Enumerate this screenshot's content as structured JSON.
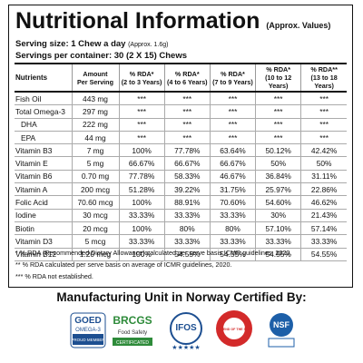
{
  "header": {
    "title": "Nutritional Information",
    "title_note": "(Approx. Values)",
    "serving_size": "Serving size: 1 Chew a day",
    "serving_note": "(Approx. 1.6g)",
    "servings_per_container": "Servings per container: 30 (2 X 15) Chews"
  },
  "table": {
    "columns": [
      [
        "Nutrients"
      ],
      [
        "Amount",
        "Per Serving"
      ],
      [
        "% RDA*",
        "(2 to 3 Years)"
      ],
      [
        "% RDA*",
        "(4 to 6 Years)"
      ],
      [
        "% RDA*",
        "(7 to 9 Years)"
      ],
      [
        "% RDA*",
        "(10 to 12 Years)"
      ],
      [
        "% RDA**",
        "(13 to 18 Years)"
      ]
    ],
    "rows": [
      [
        "Fish Oil",
        "443 mg",
        "***",
        "***",
        "***",
        "***",
        "***"
      ],
      [
        "Total Omega-3",
        "297 mg",
        "***",
        "***",
        "***",
        "***",
        "***"
      ],
      [
        "DHA",
        "222 mg",
        "***",
        "***",
        "***",
        "***",
        "***"
      ],
      [
        "EPA",
        "44 mg",
        "***",
        "***",
        "***",
        "***",
        "***"
      ],
      [
        "Vitamin B3",
        "7 mg",
        "100%",
        "77.78%",
        "63.64%",
        "50.12%",
        "42.42%"
      ],
      [
        "Vitamin E",
        "5 mg",
        "66.67%",
        "66.67%",
        "66.67%",
        "50%",
        "50%"
      ],
      [
        "Vitamin B6",
        "0.70 mg",
        "77.78%",
        "58.33%",
        "46.67%",
        "36.84%",
        "31.11%"
      ],
      [
        "Vitamin A",
        "200 mcg",
        "51.28%",
        "39.22%",
        "31.75%",
        "25.97%",
        "22.86%"
      ],
      [
        "Folic Acid",
        "70.60 mcg",
        "100%",
        "88.91%",
        "70.60%",
        "54.60%",
        "46.62%"
      ],
      [
        "Iodine",
        "30 mcg",
        "33.33%",
        "33.33%",
        "33.33%",
        "30%",
        "21.43%"
      ],
      [
        "Biotin",
        "20 mcg",
        "100%",
        "80%",
        "80%",
        "57.10%",
        "57.14%"
      ],
      [
        "Vitamin D3",
        "5 mcg",
        "33.33%",
        "33.33%",
        "33.33%",
        "33.33%",
        "33.33%"
      ],
      [
        "Vitamin B12",
        "1.20 mcg",
        "100%",
        "54.55%",
        "54.55%",
        "54.55%",
        "54.55%"
      ]
    ]
  },
  "footnotes": [
    "* % RDA (Recommended Dietary Allowance) calculated per serve basis ICMR guidelines, 2020.",
    "** % RDA calculated per serve basis on average of ICMR guidelines, 2020.",
    "*** % RDA not established."
  ],
  "certification": {
    "heading": "Manufacturing Unit in Norway Certified By:",
    "logos": [
      [
        "GOED",
        "OMEGA-3",
        "PROUD MEMBER"
      ],
      [
        "BRCGS",
        "Food Safety",
        "CERTIFICATED"
      ],
      [
        "IFOS",
        "★★★★★"
      ],
      [
        "FRIEND OF THE SEA"
      ],
      [
        "NSF"
      ]
    ]
  }
}
